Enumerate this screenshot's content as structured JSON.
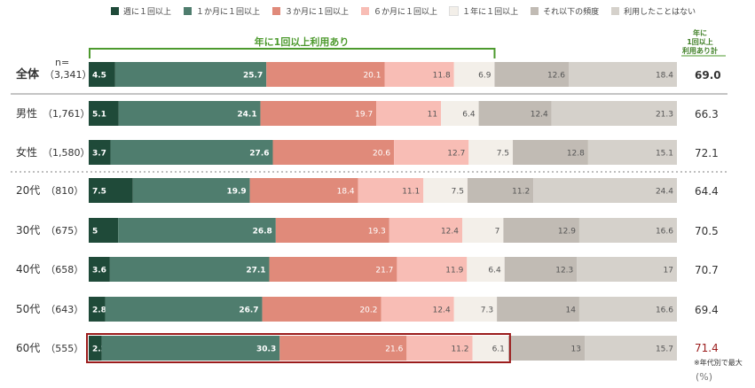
{
  "legend": [
    {
      "label": "週に１回以上",
      "color": "#1f4a39"
    },
    {
      "label": "１か月に１回以上",
      "color": "#4f7d6e"
    },
    {
      "label": "３か月に１回以上",
      "color": "#e08a7a"
    },
    {
      "label": "６か月に１回以上",
      "color": "#f8bdb5"
    },
    {
      "label": "１年に１回以上",
      "color": "#f3efe9"
    },
    {
      "label": "それ以下の頻度",
      "color": "#c1bbb4"
    },
    {
      "label": "利用したことはない",
      "color": "#d5d1cb"
    }
  ],
  "header": {
    "n_label": "n=",
    "bracket_label": "年に1回以上利用あり",
    "total_header": [
      "年に",
      "1回以上",
      "利用あり計"
    ]
  },
  "footer": {
    "note": "※年代別で最大",
    "unit": "(%)"
  },
  "colors": {
    "bracket": "#4d9a2e",
    "highlight": "#9b1c1c",
    "separator_solid": "#888888",
    "separator_dotted": "#aaaaaa"
  },
  "chart_data": {
    "type": "bar",
    "orientation": "horizontal",
    "stacked": true,
    "unit": "%",
    "series_names": [
      "週に１回以上",
      "１か月に１回以上",
      "３か月に１回以上",
      "６か月に１回以上",
      "１年に１回以上",
      "それ以下の頻度",
      "利用したことはない"
    ],
    "rows": [
      {
        "group": "全体",
        "n": "（3,341）",
        "values": [
          4.5,
          25.7,
          20.1,
          11.8,
          6.9,
          12.6,
          18.4
        ],
        "total": "69.0"
      },
      {
        "group": "男性",
        "n": "（1,761）",
        "values": [
          5.1,
          24.1,
          19.7,
          11,
          6.4,
          12.4,
          21.3
        ],
        "total": "66.3"
      },
      {
        "group": "女性",
        "n": "（1,580）",
        "values": [
          3.7,
          27.6,
          20.6,
          12.7,
          7.5,
          12.8,
          15.1
        ],
        "total": "72.1"
      },
      {
        "group": "20代",
        "n": "（810）",
        "values": [
          7.5,
          19.9,
          18.4,
          11.1,
          7.5,
          11.2,
          24.4
        ],
        "total": "64.4"
      },
      {
        "group": "30代",
        "n": "（675）",
        "values": [
          5,
          26.8,
          19.3,
          12.4,
          7,
          12.9,
          16.6
        ],
        "total": "70.5"
      },
      {
        "group": "40代",
        "n": "（658）",
        "values": [
          3.6,
          27.1,
          21.7,
          11.9,
          6.4,
          12.3,
          17
        ],
        "total": "70.7"
      },
      {
        "group": "50代",
        "n": "（643）",
        "values": [
          2.8,
          26.7,
          20.2,
          12.4,
          7.3,
          14,
          16.6
        ],
        "total": "69.4"
      },
      {
        "group": "60代",
        "n": "（555）",
        "values": [
          2.2,
          30.3,
          21.6,
          11.2,
          6.1,
          13,
          15.7
        ],
        "total": "71.4",
        "highlight": true
      }
    ]
  }
}
